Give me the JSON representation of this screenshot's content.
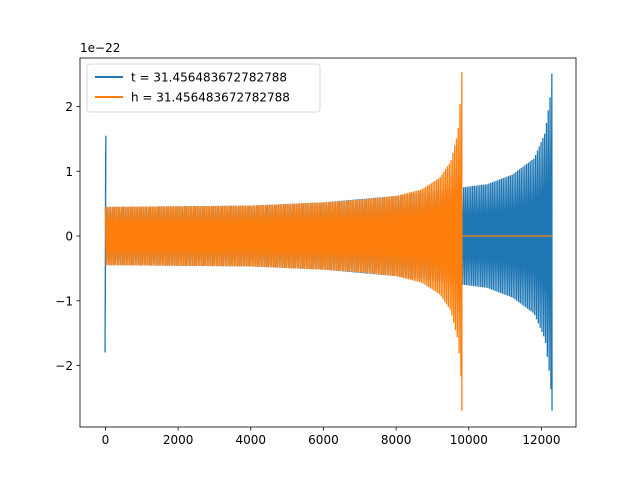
{
  "chart_data": {
    "type": "line",
    "title": "",
    "xlabel": "",
    "ylabel": "",
    "y_offset_label": "1e−22",
    "xlim": [
      -700,
      12950
    ],
    "ylim": [
      -2.95,
      2.75
    ],
    "xticks": [
      0,
      2000,
      4000,
      6000,
      8000,
      10000,
      12000
    ],
    "xtick_labels": [
      "0",
      "2000",
      "4000",
      "6000",
      "8000",
      "10000",
      "12000"
    ],
    "yticks": [
      -2,
      -1,
      0,
      1,
      2
    ],
    "ytick_labels": [
      "−2",
      "−1",
      "0",
      "1",
      "2"
    ],
    "grid": false,
    "legend_position": "upper-left",
    "series": [
      {
        "name": "t = 31.456483672782788",
        "color": "#1f77b4",
        "segments": [
          {
            "x": [
              0,
              10
            ],
            "min": [
              -1.8,
              -1.8
            ],
            "max": [
              1.55,
              1.55
            ],
            "note_kind": "spike"
          },
          {
            "x": [
              0,
              2000,
              4000,
              6000,
              8000,
              9800,
              10500,
              11200,
              11800,
              12100,
              12250,
              12290
            ],
            "min": [
              -0.45,
              -0.46,
              -0.47,
              -0.52,
              -0.62,
              -0.75,
              -0.8,
              -0.95,
              -1.2,
              -1.6,
              -2.25,
              -2.7
            ],
            "max": [
              0.45,
              0.46,
              0.47,
              0.52,
              0.62,
              0.75,
              0.8,
              0.95,
              1.2,
              1.6,
              2.2,
              2.55
            ],
            "note_kind": "band"
          }
        ]
      },
      {
        "name": "h = 31.456483672782788",
        "color": "#ff7f0e",
        "segments": [
          {
            "x": [
              0,
              2000,
              4000,
              6000,
              7000,
              8000,
              8700,
              9200,
              9500,
              9700,
              9780,
              9810
            ],
            "min": [
              -0.45,
              -0.46,
              -0.47,
              -0.52,
              -0.56,
              -0.62,
              -0.72,
              -0.9,
              -1.15,
              -1.6,
              -2.1,
              -2.7
            ],
            "max": [
              0.45,
              0.46,
              0.47,
              0.52,
              0.56,
              0.62,
              0.72,
              0.9,
              1.15,
              1.6,
              2.2,
              2.55
            ],
            "note_kind": "band"
          },
          {
            "x": [
              9810,
              12290
            ],
            "min": [
              0,
              0
            ],
            "max": [
              0,
              0
            ],
            "note_kind": "flat"
          }
        ]
      }
    ]
  }
}
